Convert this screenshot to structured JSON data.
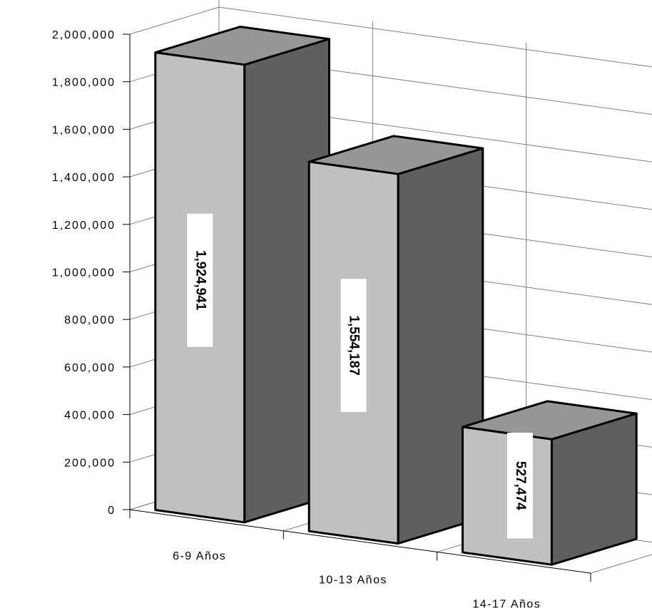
{
  "chart_data": {
    "type": "bar",
    "categories": [
      "6-9 Años",
      "10-13 Años",
      "14-17 Años"
    ],
    "values": [
      1924941,
      1554187,
      527474
    ],
    "data_labels": [
      "1,924,941",
      "1,554,187",
      "527,474"
    ],
    "y_ticks": [
      "0",
      "200,000",
      "400,000",
      "600,000",
      "800,000",
      "1,000,000",
      "1,200,000",
      "1,400,000",
      "1,600,000",
      "1,800,000",
      "2,000,000"
    ],
    "ylim": [
      0,
      2000000
    ],
    "grid": true,
    "legend": "none",
    "colors": {
      "front": "#c0c0c0",
      "top": "#969696",
      "side": "#5f5f5f",
      "outline": "#000000",
      "grid": "#808080"
    }
  }
}
